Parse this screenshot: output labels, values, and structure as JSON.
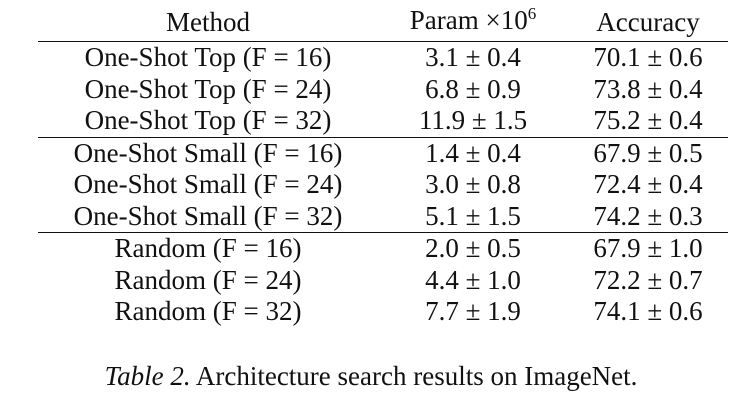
{
  "table": {
    "header": {
      "method": "Method",
      "param_base": "Param ×10",
      "param_exp": "6",
      "accuracy": "Accuracy"
    },
    "groups": [
      {
        "rows": [
          {
            "method": "One-Shot Top (F = 16)",
            "param": "3.1 ± 0.4",
            "accuracy": "70.1 ± 0.6"
          },
          {
            "method": "One-Shot Top (F = 24)",
            "param": "6.8 ± 0.9",
            "accuracy": "73.8 ± 0.4"
          },
          {
            "method": "One-Shot Top (F = 32)",
            "param": "11.9 ± 1.5",
            "accuracy": "75.2 ± 0.4"
          }
        ]
      },
      {
        "rows": [
          {
            "method": "One-Shot Small (F = 16)",
            "param": "1.4 ± 0.4",
            "accuracy": "67.9 ± 0.5"
          },
          {
            "method": "One-Shot Small (F = 24)",
            "param": "3.0 ± 0.8",
            "accuracy": "72.4 ± 0.4"
          },
          {
            "method": "One-Shot Small (F = 32)",
            "param": "5.1 ± 1.5",
            "accuracy": "74.2 ± 0.3"
          }
        ]
      },
      {
        "rows": [
          {
            "method": "Random (F = 16)",
            "param": "2.0 ± 0.5",
            "accuracy": "67.9 ± 1.0"
          },
          {
            "method": "Random (F = 24)",
            "param": "4.4 ± 1.0",
            "accuracy": "72.2 ± 0.7"
          },
          {
            "method": "Random (F = 32)",
            "param": "7.7 ± 1.9",
            "accuracy": "74.1 ± 0.6"
          }
        ]
      }
    ]
  },
  "caption": {
    "label": "Table 2.",
    "text": "Architecture search results on ImageNet."
  }
}
